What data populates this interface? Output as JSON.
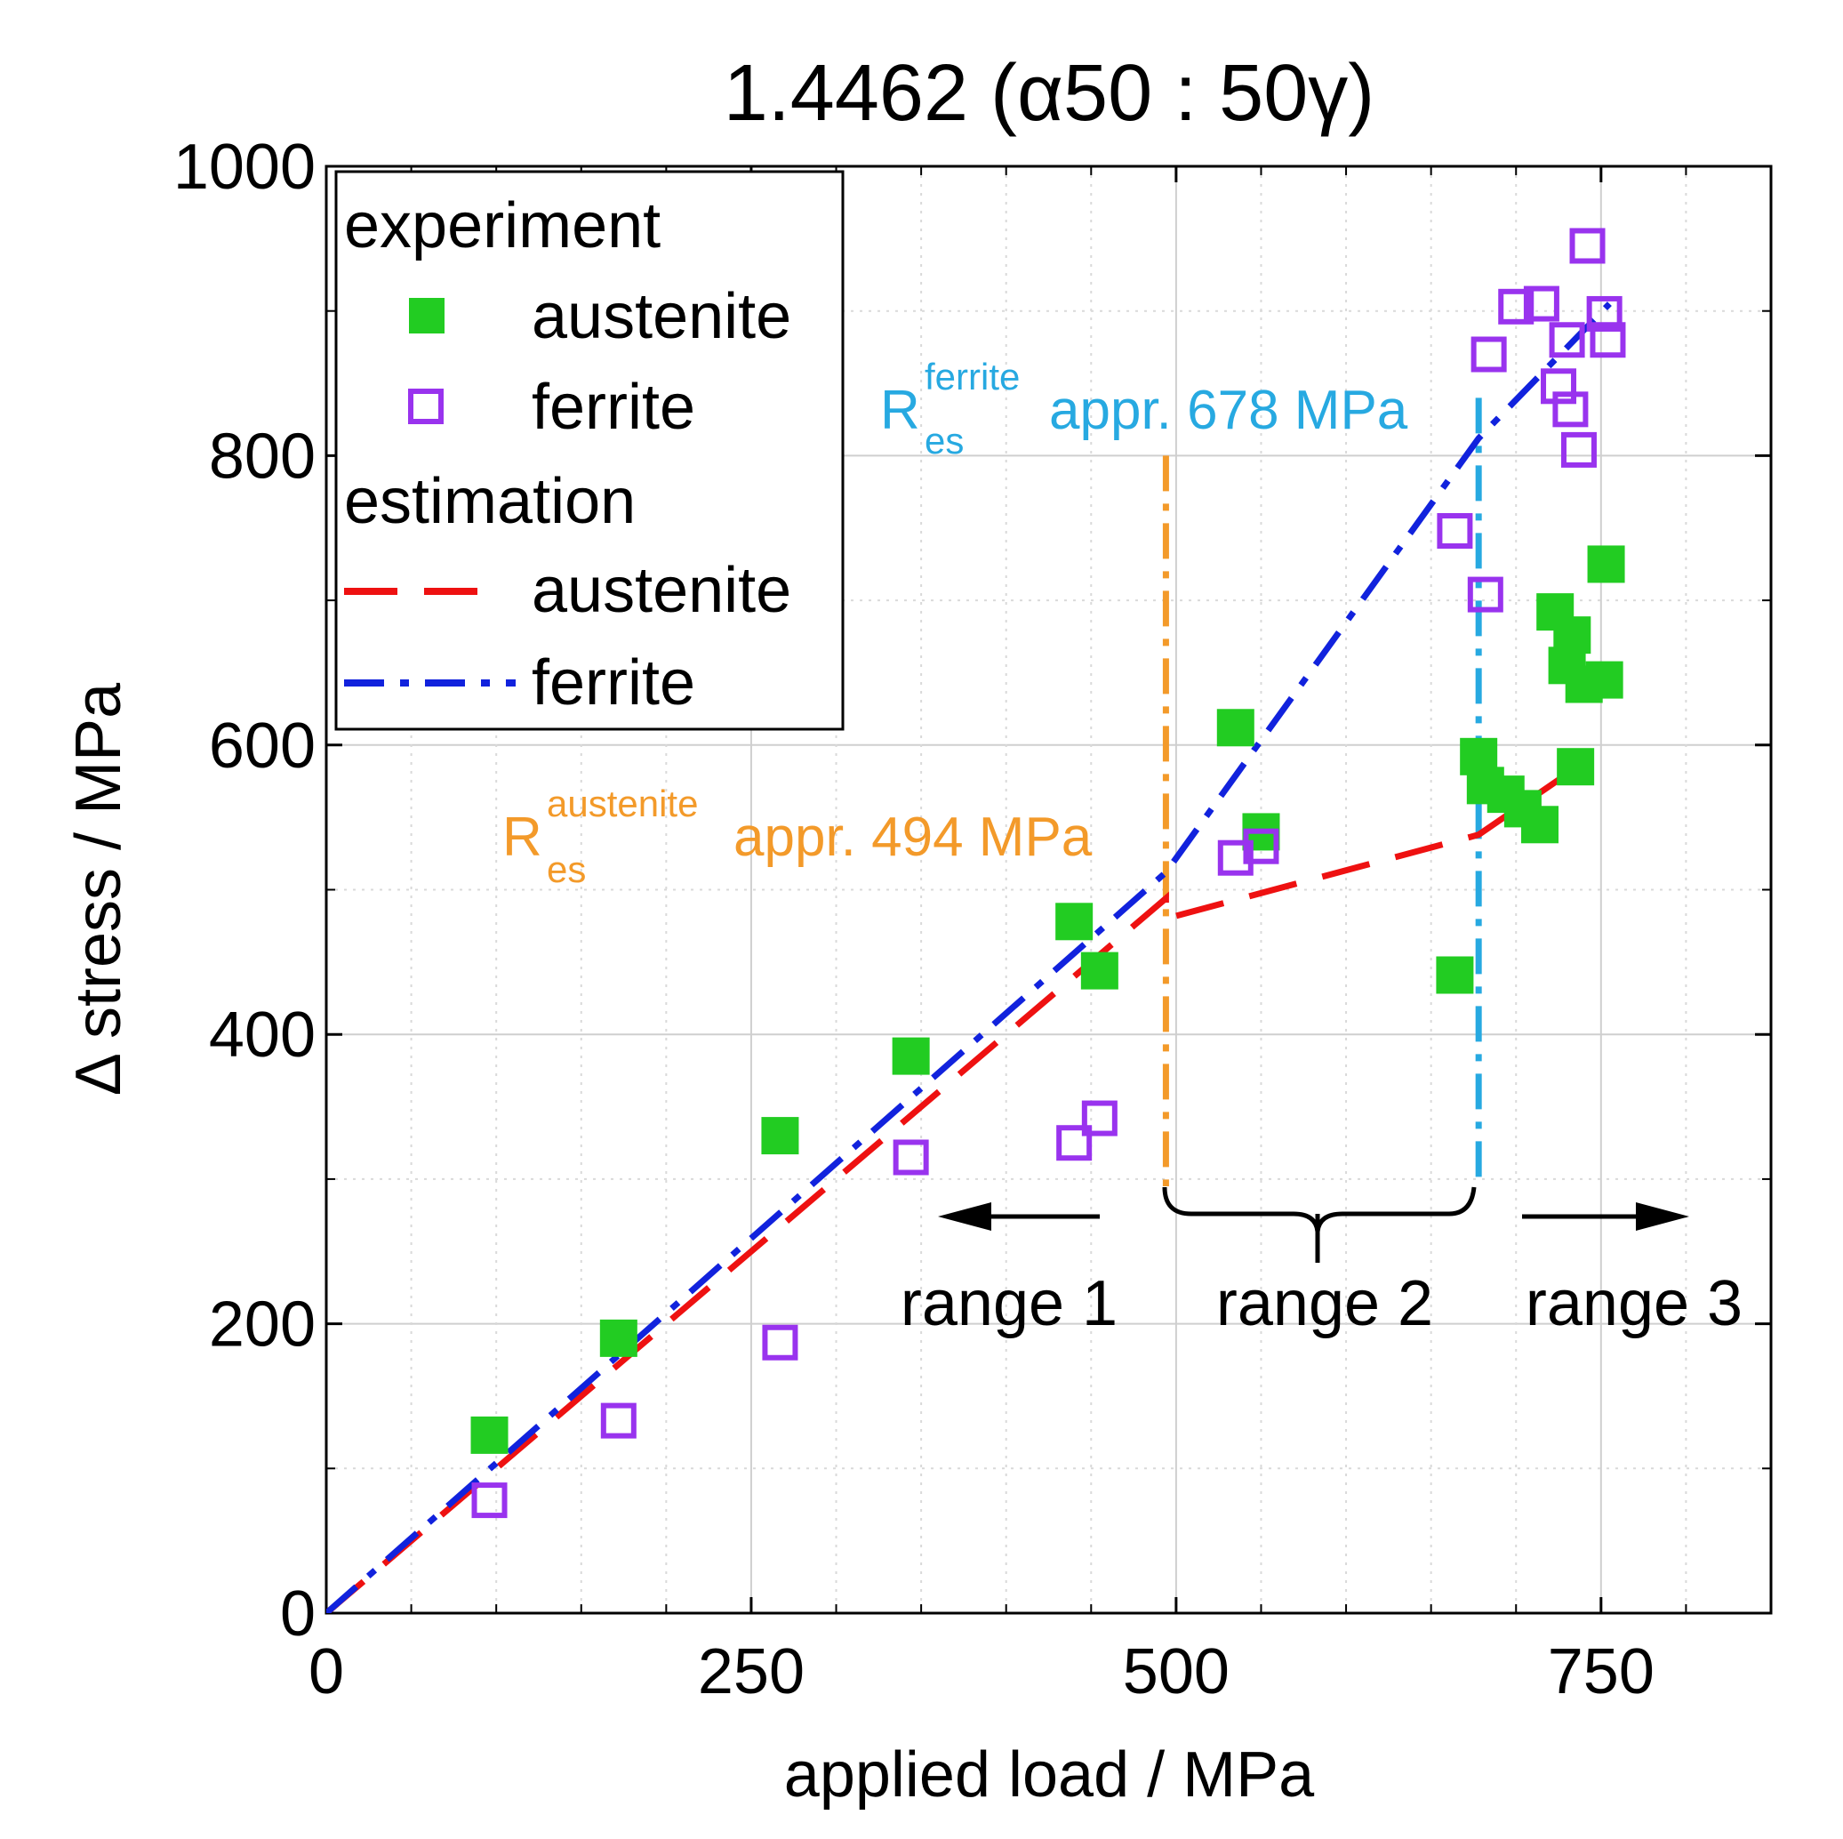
{
  "chart_data": {
    "type": "scatter",
    "title": "1.4462 (α50 : 50γ)",
    "xlabel": "applied load / MPa",
    "ylabel": "Δ stress / MPa",
    "xlim": [
      0,
      850
    ],
    "ylim": [
      0,
      1000
    ],
    "xticks": [
      "0",
      "250",
      "500",
      "750"
    ],
    "xtick_values": [
      0,
      250,
      500,
      750
    ],
    "yticks": [
      "0",
      "200",
      "400",
      "600",
      "800",
      "1000"
    ],
    "ytick_values": [
      0,
      200,
      400,
      600,
      800,
      1000
    ],
    "minor_grid_x": [
      50,
      100,
      150,
      200,
      300,
      350,
      400,
      450,
      550,
      600,
      650,
      700,
      800
    ],
    "minor_grid_y": [
      100,
      300,
      500,
      700,
      900
    ],
    "grid": true,
    "legend_position": "top-left",
    "legend": {
      "experiment_title": "experiment",
      "estimation_title": "estimation",
      "exp_austenite": "austenite",
      "exp_ferrite": "ferrite",
      "est_austenite": "austenite",
      "est_ferrite": "ferrite"
    },
    "colors": {
      "austenite_marker": "#22cc22",
      "ferrite_marker": "#9933ee",
      "austenite_line": "#ee1111",
      "ferrite_line": "#1122dd",
      "res_austenite": "#f39a2a",
      "res_ferrite": "#27a9e1"
    },
    "series": [
      {
        "name": "experiment austenite",
        "marker": "filled-square",
        "points": [
          [
            96,
            123
          ],
          [
            172,
            190
          ],
          [
            267,
            330
          ],
          [
            344,
            385
          ],
          [
            440,
            478
          ],
          [
            455,
            444
          ],
          [
            535,
            612
          ],
          [
            550,
            540
          ],
          [
            664,
            441
          ],
          [
            678,
            592
          ],
          [
            682,
            572
          ],
          [
            694,
            566
          ],
          [
            704,
            556
          ],
          [
            714,
            545
          ],
          [
            723,
            692
          ],
          [
            730,
            655
          ],
          [
            733,
            676
          ],
          [
            735,
            585
          ],
          [
            740,
            642
          ],
          [
            752,
            645
          ],
          [
            753,
            725
          ]
        ]
      },
      {
        "name": "experiment ferrite",
        "marker": "open-square",
        "points": [
          [
            96,
            78
          ],
          [
            172,
            133
          ],
          [
            267,
            187
          ],
          [
            344,
            315
          ],
          [
            440,
            325
          ],
          [
            455,
            342
          ],
          [
            535,
            522
          ],
          [
            550,
            530
          ],
          [
            664,
            748
          ],
          [
            682,
            704
          ],
          [
            684,
            870
          ],
          [
            700,
            903
          ],
          [
            715,
            905
          ],
          [
            725,
            848
          ],
          [
            730,
            880
          ],
          [
            732,
            832
          ],
          [
            737,
            804
          ],
          [
            742,
            945
          ],
          [
            752,
            898
          ],
          [
            754,
            880
          ]
        ]
      },
      {
        "name": "estimation austenite",
        "line": "dashed",
        "points": [
          [
            0,
            0
          ],
          [
            494,
            494
          ],
          [
            494,
            480
          ],
          [
            678,
            538
          ],
          [
            740,
            588
          ]
        ]
      },
      {
        "name": "estimation ferrite",
        "line": "dash-dot",
        "points": [
          [
            0,
            0
          ],
          [
            494,
            512
          ],
          [
            678,
            812
          ],
          [
            755,
            905
          ]
        ]
      }
    ],
    "annotations": {
      "res_austenite": {
        "r": "R",
        "sub": "es",
        "sup": "austenite",
        "value_text": "appr. 494 MPa",
        "x": 494,
        "y_from": 295,
        "y_to": 800
      },
      "res_ferrite": {
        "r": "R",
        "sub": "es",
        "sup": "ferrite",
        "value_text": "appr. 678 MPa",
        "x": 678,
        "y_from": 295,
        "y_to": 840
      },
      "range1": "range 1",
      "range2": "range 2",
      "range3": "range 3"
    }
  }
}
